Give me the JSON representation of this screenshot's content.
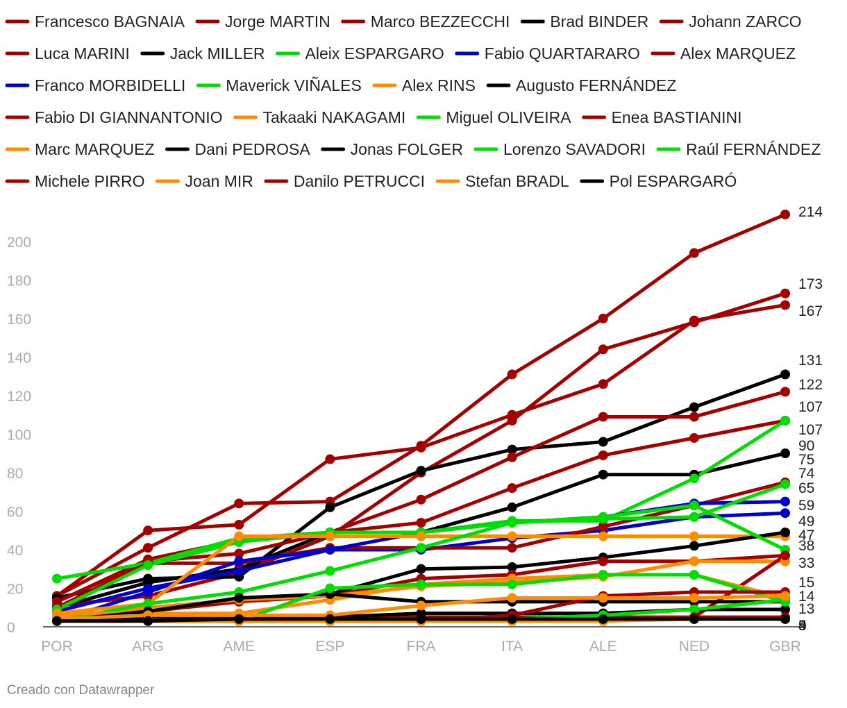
{
  "chart_data": {
    "type": "line",
    "categories": [
      "POR",
      "ARG",
      "AME",
      "ESP",
      "FRA",
      "ITA",
      "ALE",
      "NED",
      "GBR"
    ],
    "ylim": [
      0,
      214
    ],
    "yticks": [
      0,
      20,
      40,
      60,
      80,
      100,
      120,
      140,
      160,
      180,
      200
    ],
    "grid": false,
    "legend_position": "top",
    "series": [
      {
        "name": "Francesco BAGNAIA",
        "color": "#a30000",
        "values": [
          16,
          41,
          64,
          65,
          94,
          131,
          160,
          194,
          214
        ]
      },
      {
        "name": "Jorge MARTIN",
        "color": "#a30000",
        "values": [
          11,
          16,
          28,
          47,
          80,
          107,
          144,
          158,
          173
        ]
      },
      {
        "name": "Marco BEZZECCHI",
        "color": "#a30000",
        "values": [
          16,
          50,
          53,
          87,
          93,
          110,
          126,
          159,
          167
        ]
      },
      {
        "name": "Brad BINDER",
        "color": "#000000",
        "values": [
          15,
          25,
          26,
          62,
          81,
          92,
          96,
          114,
          131
        ]
      },
      {
        "name": "Johann ZARCO",
        "color": "#a30000",
        "values": [
          13,
          35,
          45,
          49,
          66,
          88,
          109,
          109,
          122
        ]
      },
      {
        "name": "Luca MARINI",
        "color": "#a30000",
        "values": [
          13,
          34,
          38,
          49,
          54,
          72,
          89,
          98,
          107
        ]
      },
      {
        "name": "Jack MILLER",
        "color": "#000000",
        "values": [
          10,
          23,
          30,
          49,
          49,
          62,
          79,
          79,
          90
        ]
      },
      {
        "name": "Aleix ESPARGARO",
        "color": "#00dd00",
        "values": [
          25,
          33,
          46,
          49,
          49,
          55,
          55,
          77,
          107
        ]
      },
      {
        "name": "Fabio QUARTARARO",
        "color": "#0000cc",
        "values": [
          8,
          20,
          29,
          40,
          40,
          46,
          50,
          57,
          59
        ]
      },
      {
        "name": "Alex MARQUEZ",
        "color": "#a30000",
        "values": [
          10,
          33,
          33,
          41,
          41,
          41,
          52,
          63,
          75
        ]
      },
      {
        "name": "Franco MORBIDELLI",
        "color": "#0000cc",
        "values": [
          3,
          18,
          34,
          40,
          49,
          54,
          57,
          64,
          65
        ]
      },
      {
        "name": "Maverick VIÑALES",
        "color": "#00dd00",
        "values": [
          9,
          32,
          44,
          49,
          49,
          54,
          56,
          57,
          74
        ]
      },
      {
        "name": "Alex RINS",
        "color": "#ff8c00",
        "values": [
          7,
          12,
          47,
          47,
          47,
          47,
          47,
          47,
          47
        ]
      },
      {
        "name": "Augusto FERNÁNDEZ",
        "color": "#000000",
        "values": [
          4,
          8,
          14,
          17,
          30,
          31,
          36,
          42,
          49
        ]
      },
      {
        "name": "Fabio DI GIANNANTONIO",
        "color": "#a30000",
        "values": [
          4,
          8,
          13,
          16,
          25,
          27,
          34,
          34,
          37
        ]
      },
      {
        "name": "Takaaki NAKAGAMI",
        "color": "#ff8c00",
        "values": [
          5,
          10,
          14,
          16,
          21,
          23,
          26,
          34,
          34
        ]
      },
      {
        "name": "Miguel OLIVEIRA",
        "color": "#00dd00",
        "values": [
          3,
          12,
          18,
          29,
          41,
          54,
          57,
          63,
          40
        ]
      },
      {
        "name": "Enea BASTIANINI",
        "color": "#a30000",
        "values": [
          3,
          5,
          5,
          5,
          5,
          5,
          5,
          5,
          37
        ]
      },
      {
        "name": "Marc MARQUEZ",
        "color": "#ff8c00",
        "values": [
          7,
          7,
          7,
          14,
          22,
          25,
          27,
          27,
          15
        ]
      },
      {
        "name": "Dani PEDROSA",
        "color": "#000000",
        "values": [
          3,
          5,
          5,
          5,
          7,
          7,
          7,
          9,
          9
        ]
      },
      {
        "name": "Jonas FOLGER",
        "color": "#000000",
        "values": [
          3,
          8,
          15,
          17,
          13,
          13,
          13,
          13,
          13
        ]
      },
      {
        "name": "Lorenzo SAVADORI",
        "color": "#00dd00",
        "values": [
          3,
          3,
          3,
          3,
          3,
          4,
          6,
          9,
          14
        ]
      },
      {
        "name": "Raúl FERNÁNDEZ",
        "color": "#00dd00",
        "values": [
          3,
          3,
          3,
          20,
          22,
          22,
          27,
          27,
          13
        ]
      },
      {
        "name": "Michele PIRRO",
        "color": "#a30000",
        "values": [
          3,
          3,
          3,
          3,
          3,
          6,
          16,
          18,
          18
        ]
      },
      {
        "name": "Joan MIR",
        "color": "#ff8c00",
        "values": [
          4,
          6,
          6,
          6,
          11,
          15,
          15,
          15,
          16
        ]
      },
      {
        "name": "Danilo PETRUCCI",
        "color": "#a30000",
        "values": [
          3,
          3,
          3,
          3,
          3,
          3,
          3,
          5,
          5
        ]
      },
      {
        "name": "Stefan BRADL",
        "color": "#ff8c00",
        "values": [
          3,
          3,
          3,
          3,
          3,
          3,
          3,
          4,
          4
        ]
      },
      {
        "name": "Pol ESPARGARÓ",
        "color": "#000000",
        "values": [
          3,
          3,
          4,
          4,
          4,
          4,
          4,
          4,
          4
        ]
      }
    ],
    "end_labels": [
      "214",
      "173",
      "167",
      "131",
      "122",
      "107",
      "107",
      "90",
      "75",
      "74",
      "65",
      "59",
      "49",
      "47",
      "38",
      "33",
      "15",
      "14",
      "13",
      "5",
      "5",
      "4",
      "9",
      "9"
    ]
  },
  "footer": "Creado con Datawrapper"
}
